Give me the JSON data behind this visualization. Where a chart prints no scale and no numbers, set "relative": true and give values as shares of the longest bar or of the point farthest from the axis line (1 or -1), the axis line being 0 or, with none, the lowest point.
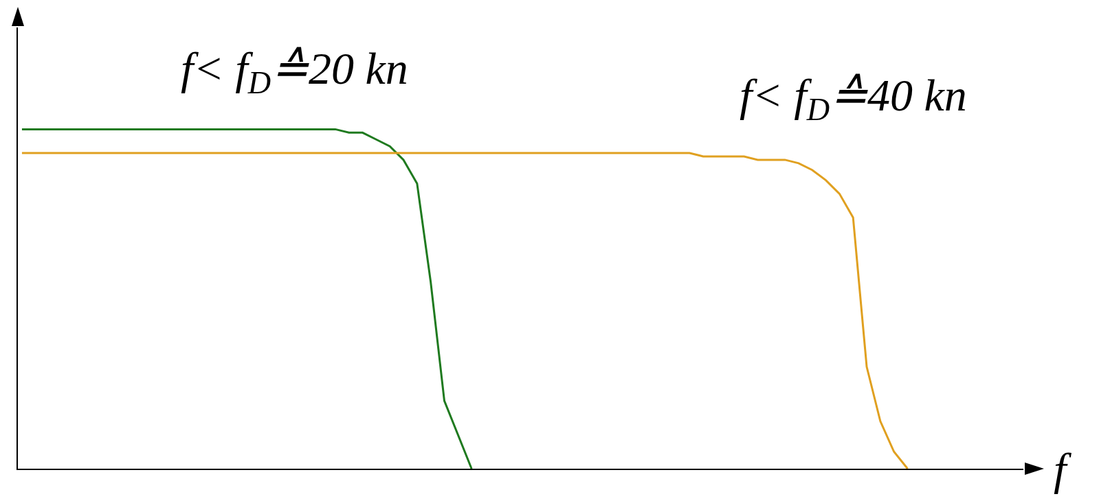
{
  "chart_data": {
    "type": "line",
    "relative": true,
    "xlabel": "f",
    "legend": false,
    "grid": false,
    "marker": "none",
    "line_style": "solid",
    "categories": [
      null,
      null,
      null,
      null,
      null,
      null,
      null,
      null,
      null,
      null,
      null,
      null,
      null,
      null,
      null,
      null,
      null,
      null,
      null,
      null,
      null,
      null,
      null,
      null,
      null,
      null,
      null,
      null,
      null,
      null,
      null,
      null,
      null,
      null,
      null,
      null,
      null,
      null,
      null,
      null,
      null,
      null,
      null,
      null,
      null,
      null,
      null,
      null,
      null,
      null,
      null,
      null,
      null,
      null,
      null,
      null,
      null,
      null,
      null,
      null,
      null,
      null,
      null,
      null,
      null,
      null,
      null,
      null,
      null,
      null,
      null,
      null,
      null
    ],
    "series": [
      {
        "name": "f< f$_{D}$≙20 kn",
        "color": "#1f7a1f",
        "values": [
          1,
          1,
          1,
          1,
          1,
          1,
          1,
          1,
          1,
          1,
          1,
          1,
          1,
          1,
          1,
          1,
          1,
          1,
          1,
          1,
          1,
          1,
          1,
          1,
          0.99,
          0.99,
          0.97,
          0.95,
          0.91,
          0.84,
          0.55,
          0.2,
          0.1,
          0,
          null,
          null,
          null,
          null,
          null,
          null,
          null,
          null,
          null,
          null,
          null,
          null,
          null,
          null,
          null,
          null,
          null,
          null,
          null,
          null,
          null,
          null,
          null,
          null,
          null,
          null,
          null,
          null,
          null,
          null,
          null,
          null,
          null,
          null,
          null,
          null,
          null,
          null,
          null
        ]
      },
      {
        "name": "f< f$_{D}$≙40 kn",
        "color": "#e0a020",
        "values": [
          0.93,
          0.93,
          0.93,
          0.93,
          0.93,
          0.93,
          0.93,
          0.93,
          0.93,
          0.93,
          0.93,
          0.93,
          0.93,
          0.93,
          0.93,
          0.93,
          0.93,
          0.93,
          0.93,
          0.93,
          0.93,
          0.93,
          0.93,
          0.93,
          0.93,
          0.93,
          0.93,
          0.93,
          0.93,
          0.93,
          0.93,
          0.93,
          0.93,
          0.93,
          0.93,
          0.93,
          0.93,
          0.93,
          0.93,
          0.93,
          0.93,
          0.93,
          0.93,
          0.93,
          0.93,
          0.93,
          0.93,
          0.93,
          0.93,
          0.93,
          0.92,
          0.92,
          0.92,
          0.92,
          0.91,
          0.91,
          0.91,
          0.9,
          0.88,
          0.85,
          0.81,
          0.74,
          0.3,
          0.14,
          0.05,
          0,
          null,
          null,
          null,
          null,
          null,
          null,
          null
        ]
      }
    ]
  }
}
